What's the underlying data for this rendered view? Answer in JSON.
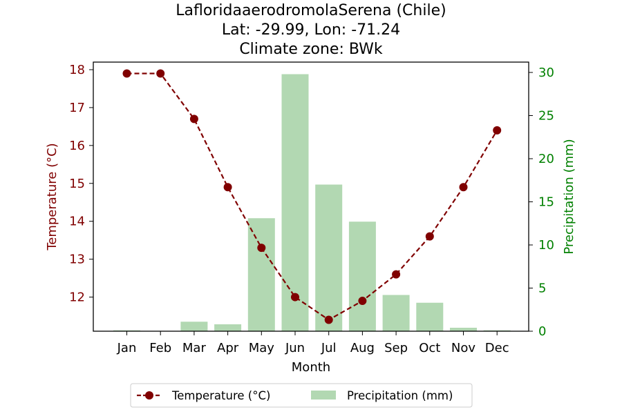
{
  "chart_data": {
    "type": "bar+line",
    "title_lines": [
      "LafloridaaerodromolaSerena (Chile)",
      "Lat: -29.99, Lon: -71.24",
      "Climate zone: BWk"
    ],
    "xlabel": "Month",
    "ylabel_left": "Temperature (°C)",
    "ylabel_right": "Precipitation (mm)",
    "categories": [
      "Jan",
      "Feb",
      "Mar",
      "Apr",
      "May",
      "Jun",
      "Jul",
      "Aug",
      "Sep",
      "Oct",
      "Nov",
      "Dec"
    ],
    "temperature": {
      "name": "Temperature (°C)",
      "values": [
        17.9,
        17.9,
        16.7,
        14.9,
        13.3,
        12.0,
        11.4,
        11.9,
        12.6,
        13.6,
        14.9,
        16.4
      ],
      "ylim": [
        11.1,
        18.2
      ],
      "ticks": [
        12,
        13,
        14,
        15,
        16,
        17,
        18
      ],
      "color": "#800000"
    },
    "precipitation": {
      "name": "Precipitation (mm)",
      "values": [
        0.1,
        0.0,
        1.1,
        0.8,
        13.1,
        29.8,
        17.0,
        12.7,
        4.2,
        3.3,
        0.4,
        0.1
      ],
      "ylim": [
        0,
        31.2
      ],
      "ticks": [
        0,
        5,
        10,
        15,
        20,
        25,
        30
      ],
      "color": "#008000",
      "bar_color": "#b2d8b2"
    },
    "legend_position": "bottom-center",
    "grid": false
  }
}
